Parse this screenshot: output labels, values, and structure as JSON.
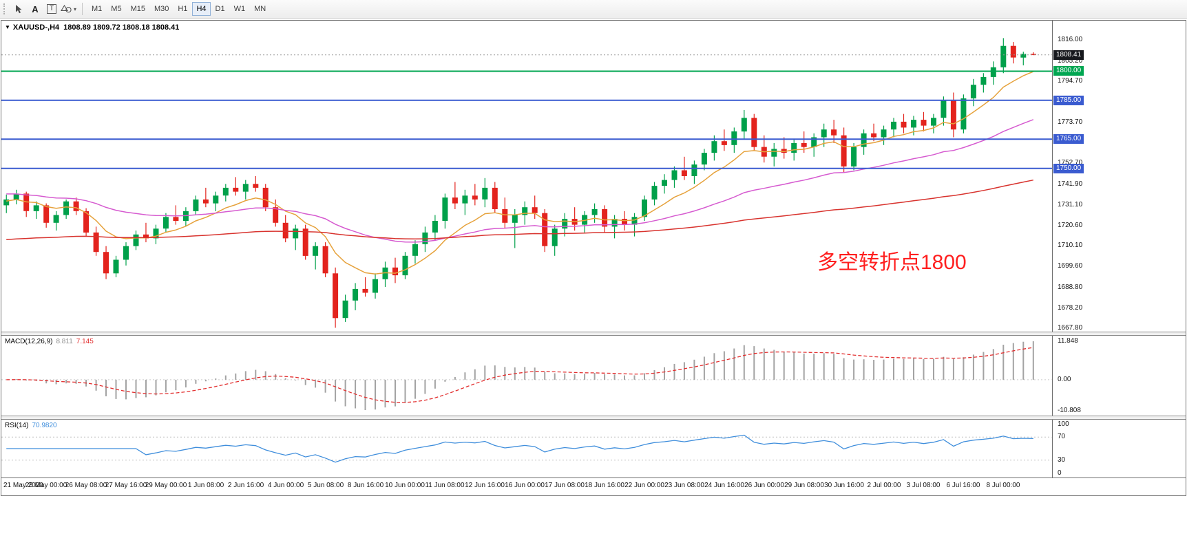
{
  "icons": {
    "menu_triangle": "▼",
    "caret": "▾"
  },
  "toolbar": {
    "text_tool_label": "A",
    "label_tool_label": "T",
    "timeframes": [
      "M1",
      "M5",
      "M15",
      "M30",
      "H1",
      "H4",
      "D1",
      "W1",
      "MN"
    ],
    "active_timeframe": "H4"
  },
  "chart": {
    "title_symbol": "XAUUSD-,H4",
    "title_ohlc": "1808.89 1809.72 1808.18 1808.41",
    "annotation": {
      "text": "多空转折点1800",
      "color": "#ff1f1f"
    },
    "current_price": {
      "price": 1808.41,
      "label": "1808.41",
      "color": "#17191d"
    },
    "levels": [
      {
        "price": 1800.0,
        "label": "1800.00",
        "color": "#00a651"
      },
      {
        "price": 1785.0,
        "label": "1785.00",
        "color": "#3a5bd0"
      },
      {
        "price": 1765.0,
        "label": "1765.00",
        "color": "#3a5bd0"
      },
      {
        "price": 1750.0,
        "label": "1750.00",
        "color": "#3a5bd0"
      }
    ],
    "price_axis_labels": [
      "1816.00",
      "1805.20",
      "1794.70",
      "1773.70",
      "1752.70",
      "1741.90",
      "1731.10",
      "1720.60",
      "1710.10",
      "1699.60",
      "1688.80",
      "1678.20",
      "1667.80"
    ]
  },
  "macd": {
    "name": "MACD(12,26,9)",
    "value": "8.811",
    "signal": "7.145",
    "fast": 12,
    "slow": 26,
    "signal_period": 9,
    "axis": [
      "11.848",
      "0.00",
      "-10.808"
    ],
    "histogram_color": "#a3a3a3",
    "signal_color": "#e22e2e"
  },
  "rsi": {
    "name": "RSI(14)",
    "value": "70.9820",
    "period": 14,
    "line_color": "#3f8edc",
    "axis": [
      {
        "text": "100",
        "value": 100
      },
      {
        "text": "70",
        "value": 70
      },
      {
        "text": "30",
        "value": 30
      },
      {
        "text": "0",
        "value": 0
      }
    ],
    "level_lines": [
      70,
      30
    ]
  },
  "chart_data": {
    "type": "candlestick",
    "symbol": "XAUUSD-",
    "timeframe": "H4",
    "title": "XAUUSD-,H4 1808.89 1809.72 1808.18 1808.41",
    "price_range": [
      1666,
      1826
    ],
    "colors": {
      "up": "#00a04a",
      "down": "#e3231d"
    },
    "moving_averages": [
      {
        "name": "fast-ma",
        "color": "#e6a23c",
        "alpha": 0.2,
        "seed": 1733
      },
      {
        "name": "mid-ma",
        "color": "#d65bd0",
        "alpha": 0.055,
        "seed": 1737
      },
      {
        "name": "slow-ma",
        "color": "#d8332e",
        "alpha": 0.016,
        "seed": 1713
      }
    ],
    "candles": [
      [
        1731,
        1736.5,
        1727,
        1734
      ],
      [
        1734,
        1739,
        1731.5,
        1737
      ],
      [
        1737,
        1738,
        1725,
        1728
      ],
      [
        1728,
        1733,
        1724,
        1731
      ],
      [
        1731,
        1732,
        1719.5,
        1722
      ],
      [
        1722,
        1728,
        1718,
        1726
      ],
      [
        1726,
        1734,
        1724,
        1733
      ],
      [
        1733,
        1735,
        1726,
        1728
      ],
      [
        1728,
        1729.5,
        1715,
        1717
      ],
      [
        1717,
        1720,
        1705,
        1707
      ],
      [
        1707,
        1710,
        1693,
        1696
      ],
      [
        1696,
        1705,
        1694,
        1703
      ],
      [
        1703,
        1712,
        1700,
        1710
      ],
      [
        1710,
        1718,
        1708,
        1716
      ],
      [
        1716,
        1722,
        1712,
        1714
      ],
      [
        1714,
        1721,
        1711,
        1719
      ],
      [
        1719,
        1727,
        1717,
        1725
      ],
      [
        1725,
        1731,
        1721,
        1723
      ],
      [
        1723,
        1730,
        1720,
        1728
      ],
      [
        1728,
        1736,
        1726,
        1734
      ],
      [
        1734,
        1740,
        1730,
        1732
      ],
      [
        1732,
        1738,
        1728,
        1736
      ],
      [
        1736,
        1742,
        1733,
        1740
      ],
      [
        1740,
        1745.5,
        1736,
        1738
      ],
      [
        1738,
        1744,
        1734,
        1742
      ],
      [
        1742,
        1746,
        1738,
        1740
      ],
      [
        1740,
        1742,
        1728,
        1730
      ],
      [
        1730,
        1734,
        1720,
        1722
      ],
      [
        1722,
        1726,
        1712,
        1714
      ],
      [
        1714,
        1721,
        1708,
        1719
      ],
      [
        1719,
        1721,
        1703,
        1705
      ],
      [
        1705,
        1712,
        1698,
        1710
      ],
      [
        1710,
        1712,
        1694,
        1696
      ],
      [
        1696,
        1699,
        1668,
        1673
      ],
      [
        1673,
        1685,
        1671,
        1682
      ],
      [
        1682,
        1691,
        1677,
        1688
      ],
      [
        1688,
        1694,
        1684,
        1686
      ],
      [
        1686,
        1696,
        1683,
        1693
      ],
      [
        1693,
        1702,
        1689,
        1699
      ],
      [
        1699,
        1704,
        1691,
        1695
      ],
      [
        1695,
        1707,
        1693,
        1705
      ],
      [
        1705,
        1713,
        1701,
        1711
      ],
      [
        1711,
        1720,
        1707,
        1717
      ],
      [
        1717,
        1726,
        1713,
        1723
      ],
      [
        1723,
        1737,
        1719,
        1735
      ],
      [
        1735,
        1743,
        1729,
        1732
      ],
      [
        1732,
        1739,
        1726,
        1736
      ],
      [
        1736,
        1742,
        1731,
        1734
      ],
      [
        1734,
        1745,
        1730,
        1740
      ],
      [
        1740,
        1743,
        1727,
        1729
      ],
      [
        1729,
        1735,
        1719,
        1722
      ],
      [
        1722,
        1729,
        1709,
        1726
      ],
      [
        1726,
        1733,
        1721,
        1730
      ],
      [
        1730,
        1736,
        1724,
        1727
      ],
      [
        1727,
        1729,
        1707,
        1710
      ],
      [
        1710,
        1721,
        1705,
        1719
      ],
      [
        1719,
        1727,
        1715,
        1724
      ],
      [
        1724,
        1730,
        1718,
        1721
      ],
      [
        1721,
        1728,
        1717,
        1726
      ],
      [
        1726,
        1732,
        1722,
        1729
      ],
      [
        1729,
        1731,
        1717,
        1720
      ],
      [
        1720,
        1726,
        1714,
        1724
      ],
      [
        1724,
        1728,
        1718,
        1721
      ],
      [
        1721,
        1727,
        1715,
        1725
      ],
      [
        1725,
        1736,
        1723,
        1734
      ],
      [
        1734,
        1743,
        1731,
        1741
      ],
      [
        1741,
        1747,
        1737,
        1744
      ],
      [
        1744,
        1751,
        1740,
        1749
      ],
      [
        1749,
        1756,
        1744,
        1746
      ],
      [
        1746,
        1754,
        1742,
        1752
      ],
      [
        1752,
        1760,
        1749,
        1758
      ],
      [
        1758,
        1767,
        1754,
        1764
      ],
      [
        1764,
        1770,
        1759,
        1762
      ],
      [
        1762,
        1771,
        1758,
        1769
      ],
      [
        1769,
        1780,
        1765,
        1776
      ],
      [
        1776,
        1778,
        1759,
        1761
      ],
      [
        1761,
        1767,
        1753,
        1756
      ],
      [
        1756,
        1763,
        1751,
        1760
      ],
      [
        1760,
        1766,
        1755,
        1758
      ],
      [
        1758,
        1765,
        1754,
        1763
      ],
      [
        1763,
        1769,
        1758,
        1761
      ],
      [
        1761,
        1768,
        1756,
        1766
      ],
      [
        1766,
        1773,
        1761,
        1770
      ],
      [
        1770,
        1775,
        1763,
        1767
      ],
      [
        1767,
        1771,
        1748,
        1751
      ],
      [
        1751,
        1763,
        1749,
        1761
      ],
      [
        1761,
        1770,
        1757,
        1768
      ],
      [
        1768,
        1773,
        1764,
        1766
      ],
      [
        1766,
        1772,
        1762,
        1770
      ],
      [
        1770,
        1776,
        1766,
        1774
      ],
      [
        1774,
        1778,
        1768,
        1771
      ],
      [
        1771,
        1777,
        1767,
        1775
      ],
      [
        1775,
        1779,
        1769,
        1772
      ],
      [
        1772,
        1778,
        1768,
        1776
      ],
      [
        1776,
        1787,
        1772,
        1785
      ],
      [
        1785,
        1789,
        1766,
        1770
      ],
      [
        1770,
        1788,
        1768,
        1786
      ],
      [
        1786,
        1796,
        1782,
        1793
      ],
      [
        1793,
        1799,
        1789,
        1797
      ],
      [
        1797,
        1805,
        1793,
        1802
      ],
      [
        1802,
        1817,
        1799,
        1813
      ],
      [
        1813,
        1815,
        1804,
        1807
      ],
      [
        1807,
        1810,
        1803,
        1808.9
      ],
      [
        1808.89,
        1809.72,
        1808.18,
        1808.41
      ]
    ],
    "time_labels": [
      "21 May 2020",
      "25 May 00:00",
      "26 May 08:00",
      "27 May 16:00",
      "29 May 00:00",
      "1 Jun 08:00",
      "2 Jun 16:00",
      "4 Jun 00:00",
      "5 Jun 08:00",
      "8 Jun 16:00",
      "10 Jun 00:00",
      "11 Jun 08:00",
      "12 Jun 16:00",
      "16 Jun 00:00",
      "17 Jun 08:00",
      "18 Jun 16:00",
      "22 Jun 00:00",
      "23 Jun 08:00",
      "24 Jun 16:00",
      "26 Jun 00:00",
      "29 Jun 08:00",
      "30 Jun 16:00",
      "2 Jul 00:00",
      "3 Jul 08:00",
      "6 Jul 16:00",
      "8 Jul 00:00"
    ]
  }
}
